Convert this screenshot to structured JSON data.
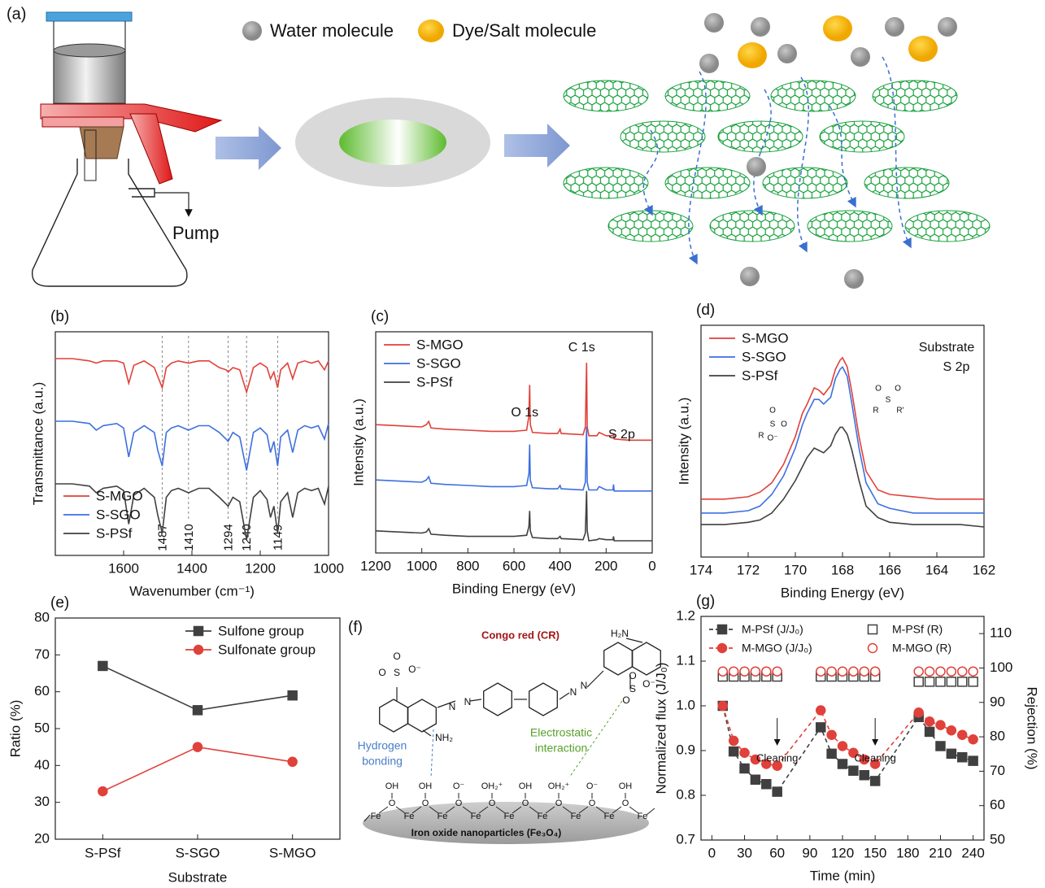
{
  "diagram_a": {
    "panel": "(a)",
    "legend": [
      "Water molecule",
      "Dye/Salt molecule"
    ],
    "pump": "Pump"
  },
  "chart_data": [
    {
      "panel": "(b)",
      "type": "line",
      "xlabel": "Wavenumber (cm⁻¹)",
      "ylabel": "Transmittance (a.u.)",
      "x": [
        1800,
        1750,
        1700,
        1680,
        1660,
        1620,
        1600,
        1585,
        1570,
        1540,
        1510,
        1500,
        1487,
        1475,
        1460,
        1440,
        1410,
        1380,
        1350,
        1320,
        1300,
        1294,
        1280,
        1260,
        1240,
        1220,
        1200,
        1180,
        1170,
        1160,
        1149,
        1140,
        1120,
        1105,
        1090,
        1070,
        1050,
        1030,
        1012,
        1000
      ],
      "series": [
        {
          "name": "S-MGO",
          "color": "#e0413a",
          "values": [
            8.8,
            8.8,
            8.7,
            8.6,
            8.7,
            8.7,
            8.6,
            7.7,
            8.5,
            8.7,
            8.4,
            8.0,
            7.5,
            8.4,
            8.6,
            8.7,
            8.6,
            8.7,
            8.7,
            8.4,
            8.3,
            8.2,
            8.4,
            8.3,
            7.3,
            8.4,
            8.6,
            8.4,
            7.9,
            8.2,
            7.5,
            8.3,
            8.6,
            7.9,
            8.6,
            8.7,
            8.6,
            8.7,
            8.3,
            8.7
          ]
        },
        {
          "name": "S-SGO",
          "color": "#3d6fe0",
          "values": [
            6.0,
            6.0,
            5.9,
            5.6,
            5.8,
            5.9,
            5.7,
            4.4,
            5.5,
            5.8,
            5.5,
            4.7,
            4.0,
            5.5,
            5.7,
            5.8,
            5.6,
            5.8,
            5.8,
            5.5,
            5.2,
            5.1,
            5.5,
            5.3,
            3.8,
            5.5,
            5.7,
            5.4,
            4.6,
            5.1,
            4.0,
            5.3,
            5.6,
            4.6,
            5.6,
            5.8,
            5.7,
            5.8,
            5.2,
            5.9
          ]
        },
        {
          "name": "S-PSf",
          "color": "#404040",
          "values": [
            3.2,
            3.2,
            3.1,
            2.8,
            3.0,
            3.1,
            2.9,
            1.4,
            2.7,
            3.0,
            2.6,
            1.8,
            1.0,
            2.6,
            2.9,
            3.0,
            2.8,
            3.0,
            3.0,
            2.6,
            2.3,
            2.2,
            2.6,
            2.4,
            0.7,
            2.6,
            2.9,
            2.5,
            1.7,
            2.2,
            1.0,
            2.4,
            2.8,
            1.7,
            2.8,
            3.0,
            2.9,
            3.0,
            2.3,
            3.1
          ]
        }
      ],
      "xlim": [
        1800,
        1000
      ],
      "xticks": [
        1600,
        1400,
        1200,
        1000
      ],
      "ylim": [
        0,
        10
      ],
      "vlines": [
        1487,
        1410,
        1294,
        1240,
        1149
      ],
      "legend": "lower left"
    },
    {
      "panel": "(c)",
      "type": "line",
      "xlabel": "Binding Energy (eV)",
      "ylabel": "Intensity (a.u.)",
      "x": [
        1200,
        1100,
        1000,
        980,
        970,
        960,
        900,
        800,
        700,
        600,
        545,
        535,
        532,
        529,
        520,
        450,
        410,
        400,
        395,
        300,
        290,
        285,
        282,
        275,
        240,
        230,
        200,
        170,
        168,
        165,
        100,
        50,
        0
      ],
      "series": [
        {
          "name": "S-MGO",
          "color": "#e0413a",
          "values": [
            5.8,
            5.75,
            5.7,
            5.8,
            5.95,
            5.65,
            5.6,
            5.55,
            5.5,
            5.5,
            5.55,
            6.2,
            7.6,
            5.8,
            5.45,
            5.4,
            5.4,
            5.6,
            5.4,
            5.35,
            5.7,
            8.6,
            5.7,
            5.3,
            5.3,
            5.45,
            5.3,
            5.3,
            5.4,
            5.15,
            5.1,
            5.1,
            5.1
          ]
        },
        {
          "name": "S-SGO",
          "color": "#3d6fe0",
          "values": [
            3.3,
            3.25,
            3.2,
            3.3,
            3.45,
            3.15,
            3.1,
            3.05,
            3.0,
            3.0,
            3.05,
            3.6,
            4.9,
            3.3,
            2.95,
            2.9,
            2.9,
            3.05,
            2.9,
            2.85,
            3.2,
            5.7,
            3.2,
            2.85,
            2.85,
            3.0,
            2.85,
            2.85,
            3.1,
            2.8,
            2.8,
            2.8,
            2.8
          ]
        },
        {
          "name": "S-PSf",
          "color": "#404040",
          "values": [
            1.0,
            0.95,
            0.9,
            0.95,
            1.1,
            0.85,
            0.8,
            0.75,
            0.75,
            0.75,
            0.8,
            1.2,
            1.9,
            1.0,
            0.7,
            0.65,
            0.65,
            0.75,
            0.65,
            0.6,
            0.9,
            2.8,
            1.0,
            0.55,
            0.6,
            0.65,
            0.6,
            0.6,
            0.75,
            0.55,
            0.55,
            0.55,
            0.55
          ]
        }
      ],
      "xlim": [
        1200,
        0
      ],
      "xticks": [
        1200,
        1000,
        800,
        600,
        400,
        200,
        0
      ],
      "ylim": [
        0,
        10
      ],
      "legend": "upper left",
      "annotations": [
        {
          "text": "O 1s",
          "x": 532
        },
        {
          "text": "C 1s",
          "x": 285
        },
        {
          "text": "S 2p",
          "x": 168
        }
      ]
    },
    {
      "panel": "(d)",
      "type": "line",
      "xlabel": "Binding Energy (eV)",
      "ylabel": "Intensity (a.u.)",
      "x": [
        174,
        173,
        172,
        171.5,
        171,
        170.5,
        170,
        169.7,
        169.5,
        169.2,
        169.0,
        168.8,
        168.5,
        168.3,
        168.1,
        168.0,
        167.8,
        167.6,
        167.3,
        167.0,
        166.5,
        166,
        165,
        164,
        163,
        162
      ],
      "series": [
        {
          "name": "S-MGO",
          "color": "#e0413a",
          "values": [
            2.5,
            2.5,
            2.6,
            2.8,
            3.2,
            4.0,
            5.2,
            6.2,
            6.6,
            7.3,
            7.2,
            7.0,
            7.4,
            8.1,
            8.5,
            8.6,
            8.2,
            7.1,
            5.2,
            3.7,
            2.9,
            2.7,
            2.6,
            2.5,
            2.5,
            2.5
          ]
        },
        {
          "name": "S-SGO",
          "color": "#3d6fe0",
          "values": [
            1.9,
            1.9,
            2.0,
            2.2,
            2.7,
            3.5,
            4.7,
            5.7,
            6.2,
            6.8,
            6.8,
            6.6,
            6.9,
            7.7,
            8.1,
            8.2,
            7.8,
            6.6,
            4.7,
            3.2,
            2.3,
            2.1,
            1.9,
            1.9,
            1.9,
            1.9
          ]
        },
        {
          "name": "S-PSf",
          "color": "#404040",
          "values": [
            1.4,
            1.4,
            1.5,
            1.6,
            1.9,
            2.5,
            3.3,
            3.9,
            4.3,
            4.7,
            4.6,
            4.5,
            4.8,
            5.3,
            5.6,
            5.6,
            5.3,
            4.6,
            3.3,
            2.2,
            1.7,
            1.5,
            1.4,
            1.4,
            1.4,
            1.3
          ]
        }
      ],
      "xlim": [
        174,
        162
      ],
      "xticks": [
        174,
        172,
        170,
        168,
        166,
        164,
        162
      ],
      "ylim": [
        0,
        10
      ],
      "legend": "upper left",
      "notes": [
        "Substrate",
        "S 2p"
      ],
      "structures": [
        {
          "atoms": [
            "O",
            "S",
            "O",
            "R",
            "O⁻"
          ]
        },
        {
          "atoms": [
            "O",
            "S",
            "O",
            "R",
            "R'"
          ]
        }
      ]
    },
    {
      "panel": "(e)",
      "type": "line",
      "xlabel": "Substrate",
      "ylabel": "Ratio (%)",
      "categories": [
        "S-PSf",
        "S-SGO",
        "S-MGO"
      ],
      "series": [
        {
          "name": "Sulfone group",
          "color": "#404040",
          "marker": "square",
          "values": [
            67,
            55,
            59
          ]
        },
        {
          "name": "Sulfonate group",
          "color": "#e0413a",
          "marker": "circle",
          "values": [
            33,
            45,
            41
          ]
        }
      ],
      "ylim": [
        20,
        80
      ],
      "yticks": [
        20,
        30,
        40,
        50,
        60,
        70,
        80
      ],
      "legend": "upper right"
    },
    {
      "panel": "(g)",
      "type": "line",
      "xlabel": "Time (min)",
      "ylabel": "Normalized flux (J/J₀)",
      "y2label": "Rejection (%)",
      "x": [
        10,
        20,
        30,
        40,
        50,
        60,
        100,
        110,
        120,
        130,
        140,
        150,
        190,
        200,
        210,
        220,
        230,
        240
      ],
      "series": [
        {
          "name": "M-PSf (J/J₀)",
          "color": "#404040",
          "marker": "square",
          "linestyle": "dashed",
          "values": [
            1.0,
            0.898,
            0.86,
            0.835,
            0.825,
            0.808,
            0.952,
            0.893,
            0.87,
            0.855,
            0.845,
            0.832,
            0.975,
            0.942,
            0.91,
            0.893,
            0.885,
            0.877
          ]
        },
        {
          "name": "M-PSf (R)",
          "color": "#404040",
          "marker": "square",
          "filled": false,
          "linestyle": "none",
          "axis": "y2",
          "values": [
            97.5,
            97.5,
            97.5,
            97.5,
            97.5,
            97.5,
            97.5,
            97.5,
            97.5,
            97.5,
            97.5,
            97.5,
            96,
            96,
            96,
            96,
            96,
            96
          ]
        },
        {
          "name": "M-MGO (J/J₀)",
          "color": "#e0413a",
          "marker": "circle",
          "linestyle": "dashed",
          "values": [
            1.0,
            0.922,
            0.895,
            0.88,
            0.87,
            0.866,
            0.99,
            0.935,
            0.91,
            0.895,
            0.88,
            0.87,
            0.985,
            0.965,
            0.957,
            0.945,
            0.935,
            0.925
          ]
        },
        {
          "name": "M-MGO (R)",
          "color": "#e0413a",
          "marker": "circle",
          "filled": false,
          "linestyle": "none",
          "axis": "y2",
          "values": [
            99,
            99,
            99,
            99,
            99,
            99,
            99,
            99,
            99,
            99,
            99,
            99,
            99,
            99,
            99,
            99,
            99,
            99
          ]
        }
      ],
      "xlim": [
        -10,
        250
      ],
      "xticks": [
        0,
        30,
        60,
        90,
        120,
        150,
        180,
        210,
        240
      ],
      "ylim": [
        0.7,
        1.2
      ],
      "yticks": [
        0.7,
        0.8,
        0.9,
        {
          "value": 1,
          "label": "1.0"
        },
        1.1,
        1.2
      ],
      "y2lim": [
        50,
        115
      ],
      "y2ticks": [
        50,
        60,
        70,
        80,
        90,
        100,
        110
      ],
      "legend": "upper left",
      "legend_ncol": 2,
      "annotations": [
        {
          "text": "Cleaning",
          "x": 60
        },
        {
          "text": "Cleaning",
          "x": 150
        }
      ]
    }
  ],
  "diagram_f": {
    "panel": "(f)",
    "title": "Congo red (CR)",
    "hydrogen": [
      "Hydrogen",
      "bonding"
    ],
    "electrostatic": [
      "Electrostatic",
      "interaction"
    ],
    "substrate": "Iron oxide nanoparticles (Fe₃O₄)",
    "dye_atoms": [
      "O",
      "S",
      "O⁻",
      "O",
      "N",
      "N",
      "N",
      "N",
      "NH₂",
      "H₂N",
      "O",
      "S",
      "O⁻",
      "O"
    ],
    "groups": [
      "OH",
      "OH",
      "O⁻",
      "OH₂⁺",
      "OH",
      "OH₂⁺",
      "O⁻",
      "OH"
    ],
    "bridges": [
      "O",
      "O",
      "O",
      "O",
      "O",
      "O",
      "O",
      "O"
    ],
    "fe": [
      "Fe",
      "Fe",
      "Fe",
      "Fe",
      "Fe",
      "Fe",
      "Fe",
      "Fe",
      "Fe"
    ]
  }
}
